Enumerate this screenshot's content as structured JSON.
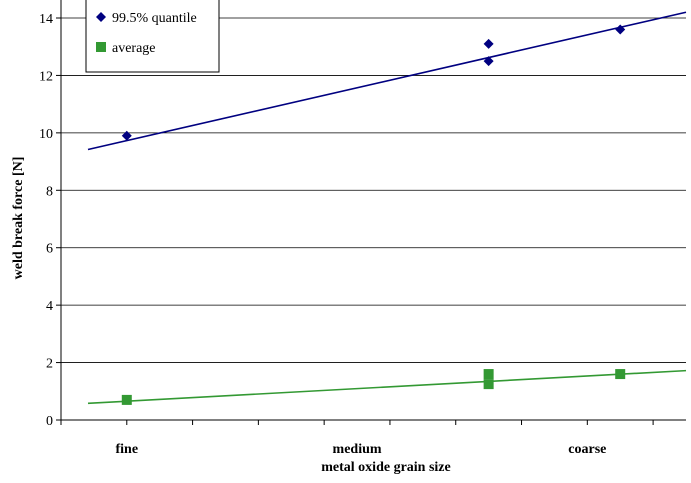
{
  "chart_data": {
    "type": "scatter",
    "title": "",
    "xlabel": "metal oxide grain size",
    "ylabel": "weld break force [N]",
    "categories": [
      "fine",
      "medium",
      "coarse"
    ],
    "xlim": [
      0,
      9.5
    ],
    "ylim": [
      0,
      14
    ],
    "yticks": [
      "0",
      "2",
      "4",
      "6",
      "8",
      "10",
      "12",
      "14"
    ],
    "grid": "horizontal",
    "legend_position": "top-left",
    "category_positions": [
      1,
      4.5,
      8
    ],
    "series": [
      {
        "name": "99.5% quantile",
        "marker": "diamond",
        "color": "#000080",
        "points": [
          {
            "x": 1,
            "y": 9.9
          },
          {
            "x": 6.5,
            "y": 13.1
          },
          {
            "x": 6.5,
            "y": 12.5
          },
          {
            "x": 8.5,
            "y": 13.6
          }
        ],
        "trendline": [
          [
            0,
            9.42
          ],
          [
            9.5,
            14.2
          ]
        ]
      },
      {
        "name": "average",
        "marker": "square",
        "color": "#339933",
        "points": [
          {
            "x": 1,
            "y": 0.7
          },
          {
            "x": 6.5,
            "y": 1.6
          },
          {
            "x": 6.5,
            "y": 1.25
          },
          {
            "x": 8.5,
            "y": 1.6
          }
        ],
        "trendline": [
          [
            0,
            0.58
          ],
          [
            9.5,
            1.72
          ]
        ]
      }
    ]
  }
}
